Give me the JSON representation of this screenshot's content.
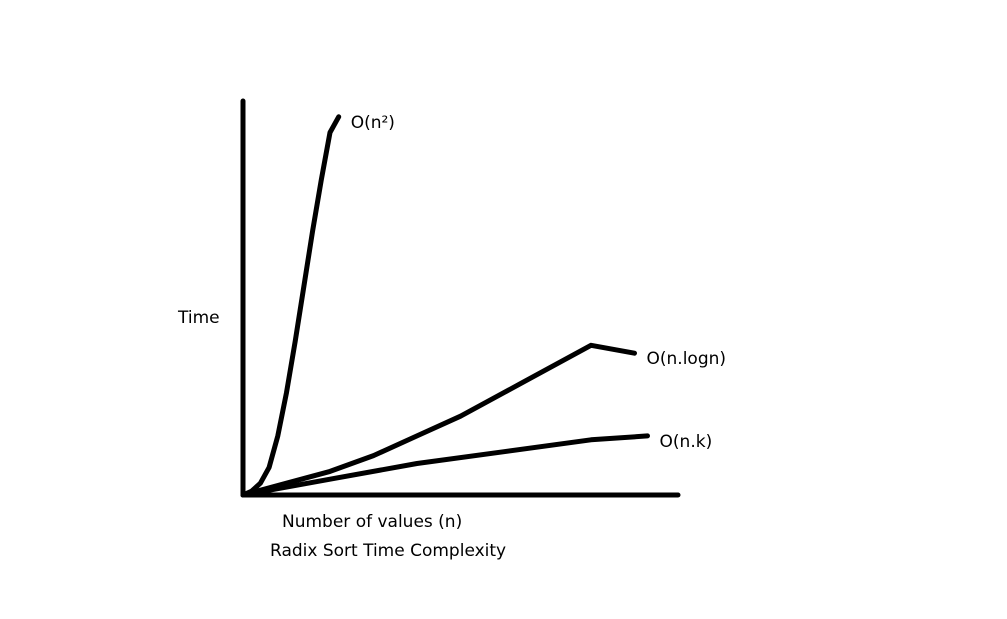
{
  "chart_data": {
    "type": "line",
    "title": "Radix Sort Time Complexity",
    "xlabel": "Number of values (n)",
    "ylabel": "Time",
    "grid": false,
    "legend": "none",
    "xlim": [
      0,
      10
    ],
    "ylim": [
      0,
      10
    ],
    "series": [
      {
        "name": "O(n²)",
        "x": [
          0,
          0.2,
          0.4,
          0.6,
          0.8,
          1.0,
          1.2,
          1.4,
          1.6,
          1.8,
          2.0,
          2.2
        ],
        "y": [
          0,
          0.1,
          0.3,
          0.7,
          1.5,
          2.6,
          3.9,
          5.3,
          6.7,
          8.0,
          9.2,
          9.6
        ]
      },
      {
        "name": "O(n.logn)",
        "x": [
          0,
          1,
          2,
          3,
          4,
          5,
          6,
          7,
          8,
          9
        ],
        "y": [
          0,
          0.3,
          0.6,
          1.0,
          1.5,
          2.0,
          2.6,
          3.2,
          3.8,
          3.6
        ]
      },
      {
        "name": "O(n.k)",
        "x": [
          0,
          2,
          4,
          6,
          8,
          9.3
        ],
        "y": [
          0,
          0.4,
          0.8,
          1.1,
          1.4,
          1.5
        ]
      }
    ],
    "colors": {
      "line": "#000000",
      "background": "#ffffff"
    }
  }
}
